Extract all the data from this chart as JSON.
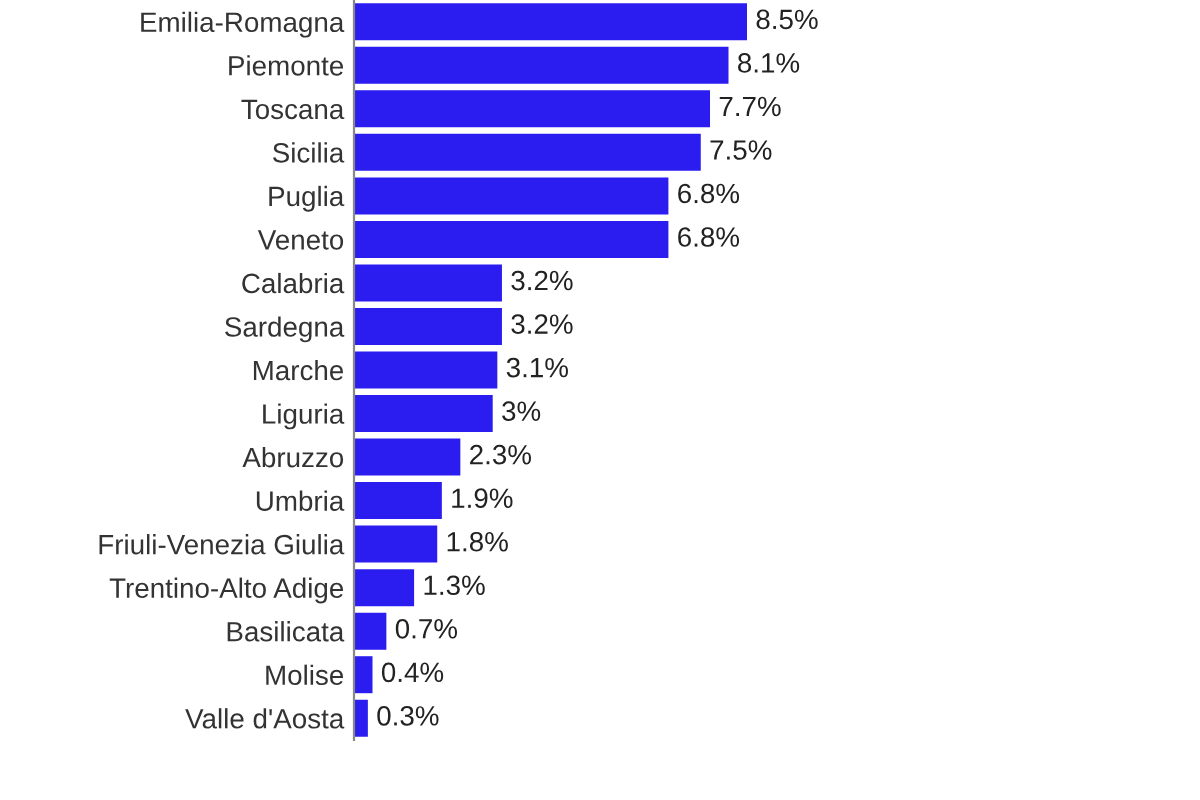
{
  "chart_data": {
    "type": "bar",
    "orientation": "horizontal",
    "color": "#2b1cf0",
    "categories": [
      "Emilia-Romagna",
      "Piemonte",
      "Toscana",
      "Sicilia",
      "Puglia",
      "Veneto",
      "Calabria",
      "Sardegna",
      "Marche",
      "Liguria",
      "Abruzzo",
      "Umbria",
      "Friuli-Venezia Giulia",
      "Trentino-Alto Adige",
      "Basilicata",
      "Molise",
      "Valle d'Aosta"
    ],
    "values": [
      8.5,
      8.1,
      7.7,
      7.5,
      6.8,
      6.8,
      3.2,
      3.2,
      3.1,
      3,
      2.3,
      1.9,
      1.8,
      1.3,
      0.7,
      0.4,
      0.3
    ],
    "value_labels": [
      "8.5%",
      "8.1%",
      "7.7%",
      "7.5%",
      "6.8%",
      "6.8%",
      "3.2%",
      "3.2%",
      "3.1%",
      "3%",
      "2.3%",
      "1.9%",
      "1.8%",
      "1.3%",
      "0.7%",
      "0.4%",
      "0.3%"
    ],
    "tick_labels": "y",
    "grid": false,
    "legend": false
  }
}
